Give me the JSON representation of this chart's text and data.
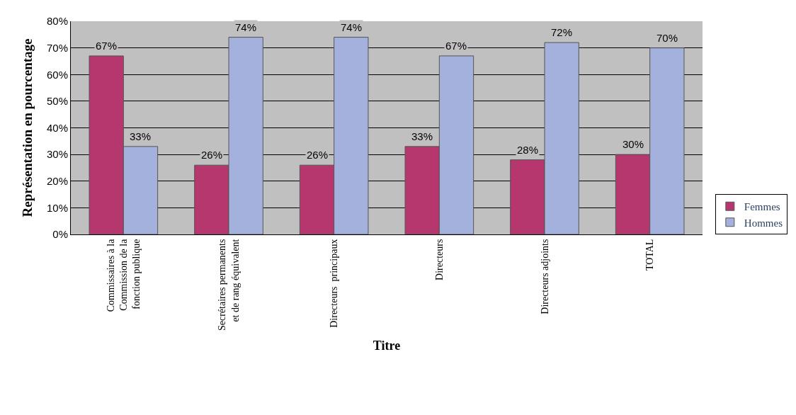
{
  "chart_data": {
    "type": "bar",
    "xlabel": "Titre",
    "ylabel": "Représentation en pourcentage",
    "categories": [
      "Commissaires à la\nCommission de la\nfonction publique",
      "Secrétaires permanents\net de rang équivalent",
      "Directeurs  principaux",
      "Directeurs",
      "Directeurs adjoints",
      "TOTAL"
    ],
    "series": [
      {
        "name": "Femmes",
        "color": "#b5376e",
        "values": [
          67,
          26,
          26,
          33,
          28,
          30
        ],
        "value_labels": [
          "67%",
          "26%",
          "26%",
          "33%",
          "28%",
          "30%"
        ]
      },
      {
        "name": "Hommes",
        "color": "#a3b1dc",
        "values": [
          33,
          74,
          74,
          67,
          72,
          70
        ],
        "value_labels": [
          "33%",
          "74%",
          "74%",
          "67%",
          "72%",
          "70%"
        ]
      }
    ],
    "ylim": [
      0,
      80
    ],
    "yticks": [
      {
        "value": 0,
        "label": "0%"
      },
      {
        "value": 10,
        "label": "10%"
      },
      {
        "value": 20,
        "label": "20%"
      },
      {
        "value": 30,
        "label": "30%"
      },
      {
        "value": 40,
        "label": "40%"
      },
      {
        "value": 50,
        "label": "50%"
      },
      {
        "value": 60,
        "label": "60%"
      },
      {
        "value": 70,
        "label": "70%"
      },
      {
        "value": 80,
        "label": "80%"
      }
    ],
    "grid": "y",
    "legend": "bottom right"
  }
}
